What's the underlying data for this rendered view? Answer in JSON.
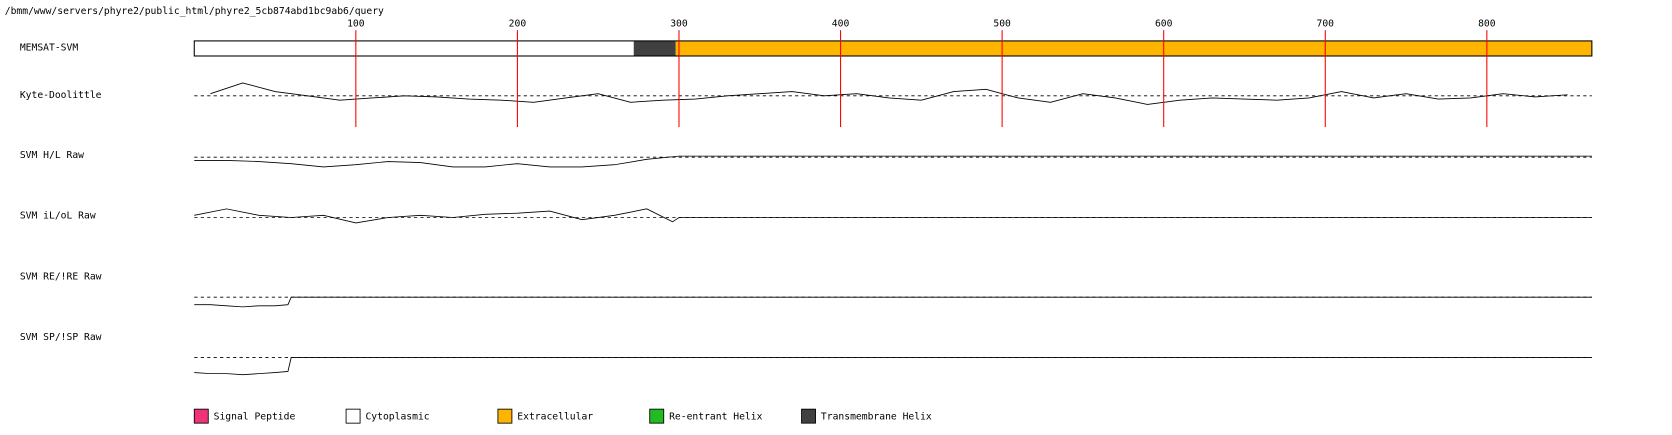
{
  "path": "/bmm/www/servers/phyre2/public_html/phyre2_5cb874abd1bc9ab6/query",
  "xlim": [
    0,
    865
  ],
  "xticks": [
    100,
    200,
    300,
    400,
    500,
    600,
    700,
    800
  ],
  "memsat": {
    "label": "MEMSAT-SVM",
    "segments": [
      {
        "start": 0,
        "end": 272,
        "color": "#ffffff"
      },
      {
        "start": 272,
        "end": 298,
        "color": "#404040"
      },
      {
        "start": 298,
        "end": 865,
        "color": "#ffb400"
      }
    ]
  },
  "tracks": [
    {
      "label": "Kyte-Doolittle",
      "ylim": [
        -20,
        20
      ],
      "baseline": 0,
      "x": [
        10,
        30,
        50,
        70,
        90,
        110,
        130,
        150,
        170,
        190,
        210,
        230,
        250,
        270,
        290,
        310,
        330,
        350,
        370,
        390,
        410,
        430,
        450,
        470,
        490,
        510,
        530,
        550,
        570,
        590,
        610,
        630,
        650,
        670,
        690,
        710,
        730,
        750,
        770,
        790,
        810,
        830,
        850
      ],
      "values": [
        2,
        12,
        4,
        0,
        -4,
        -2,
        0,
        -1,
        -3,
        -4,
        -6,
        -2,
        2,
        -6,
        -4,
        -3,
        0,
        2,
        4,
        0,
        2,
        -2,
        -4,
        4,
        6,
        -2,
        -6,
        2,
        -2,
        -8,
        -4,
        -2,
        -3,
        -4,
        -2,
        4,
        -2,
        2,
        -3,
        -2,
        2,
        -1,
        1
      ]
    },
    {
      "label": "SVM H/L Raw",
      "ylim": [
        -20,
        20
      ],
      "baseline": 0,
      "x": [
        0,
        20,
        40,
        60,
        80,
        100,
        120,
        140,
        160,
        180,
        200,
        220,
        240,
        260,
        280,
        300,
        865
      ],
      "values": [
        -3,
        -3,
        -4,
        -6,
        -9,
        -7,
        -4,
        -5,
        -9,
        -9,
        -6,
        -9,
        -9,
        -7,
        -2,
        1,
        1
      ]
    },
    {
      "label": "SVM iL/oL Raw",
      "ylim": [
        -20,
        20
      ],
      "baseline": 0,
      "x": [
        0,
        20,
        40,
        60,
        80,
        100,
        120,
        140,
        160,
        180,
        200,
        220,
        240,
        260,
        280,
        296,
        300,
        865
      ],
      "values": [
        2,
        8,
        2,
        0,
        2,
        -5,
        0,
        2,
        0,
        3,
        4,
        6,
        -2,
        2,
        8,
        -4,
        0,
        0
      ]
    },
    {
      "label": "SVM RE/!RE Raw",
      "ylim": [
        -20,
        20
      ],
      "baseline": 0,
      "x": [
        0,
        10,
        20,
        30,
        40,
        50,
        58,
        60,
        865
      ],
      "values": [
        -7,
        -7,
        -8,
        -9,
        -8,
        -8,
        -7,
        0,
        0
      ]
    },
    {
      "label": "SVM SP/!SP Raw",
      "ylim": [
        -20,
        20
      ],
      "baseline": 0,
      "x": [
        0,
        10,
        20,
        30,
        40,
        50,
        58,
        60,
        865
      ],
      "values": [
        -14,
        -15,
        -15,
        -16,
        -15,
        -14,
        -13,
        0,
        0
      ]
    }
  ],
  "legend": [
    {
      "label": "Signal Peptide",
      "color": "#ee3377"
    },
    {
      "label": "Cytoplasmic",
      "color": "#ffffff"
    },
    {
      "label": "Extracellular",
      "color": "#ffb400"
    },
    {
      "label": "Re-entrant Helix",
      "color": "#22bb22"
    },
    {
      "label": "Transmembrane Helix",
      "color": "#404040"
    }
  ]
}
